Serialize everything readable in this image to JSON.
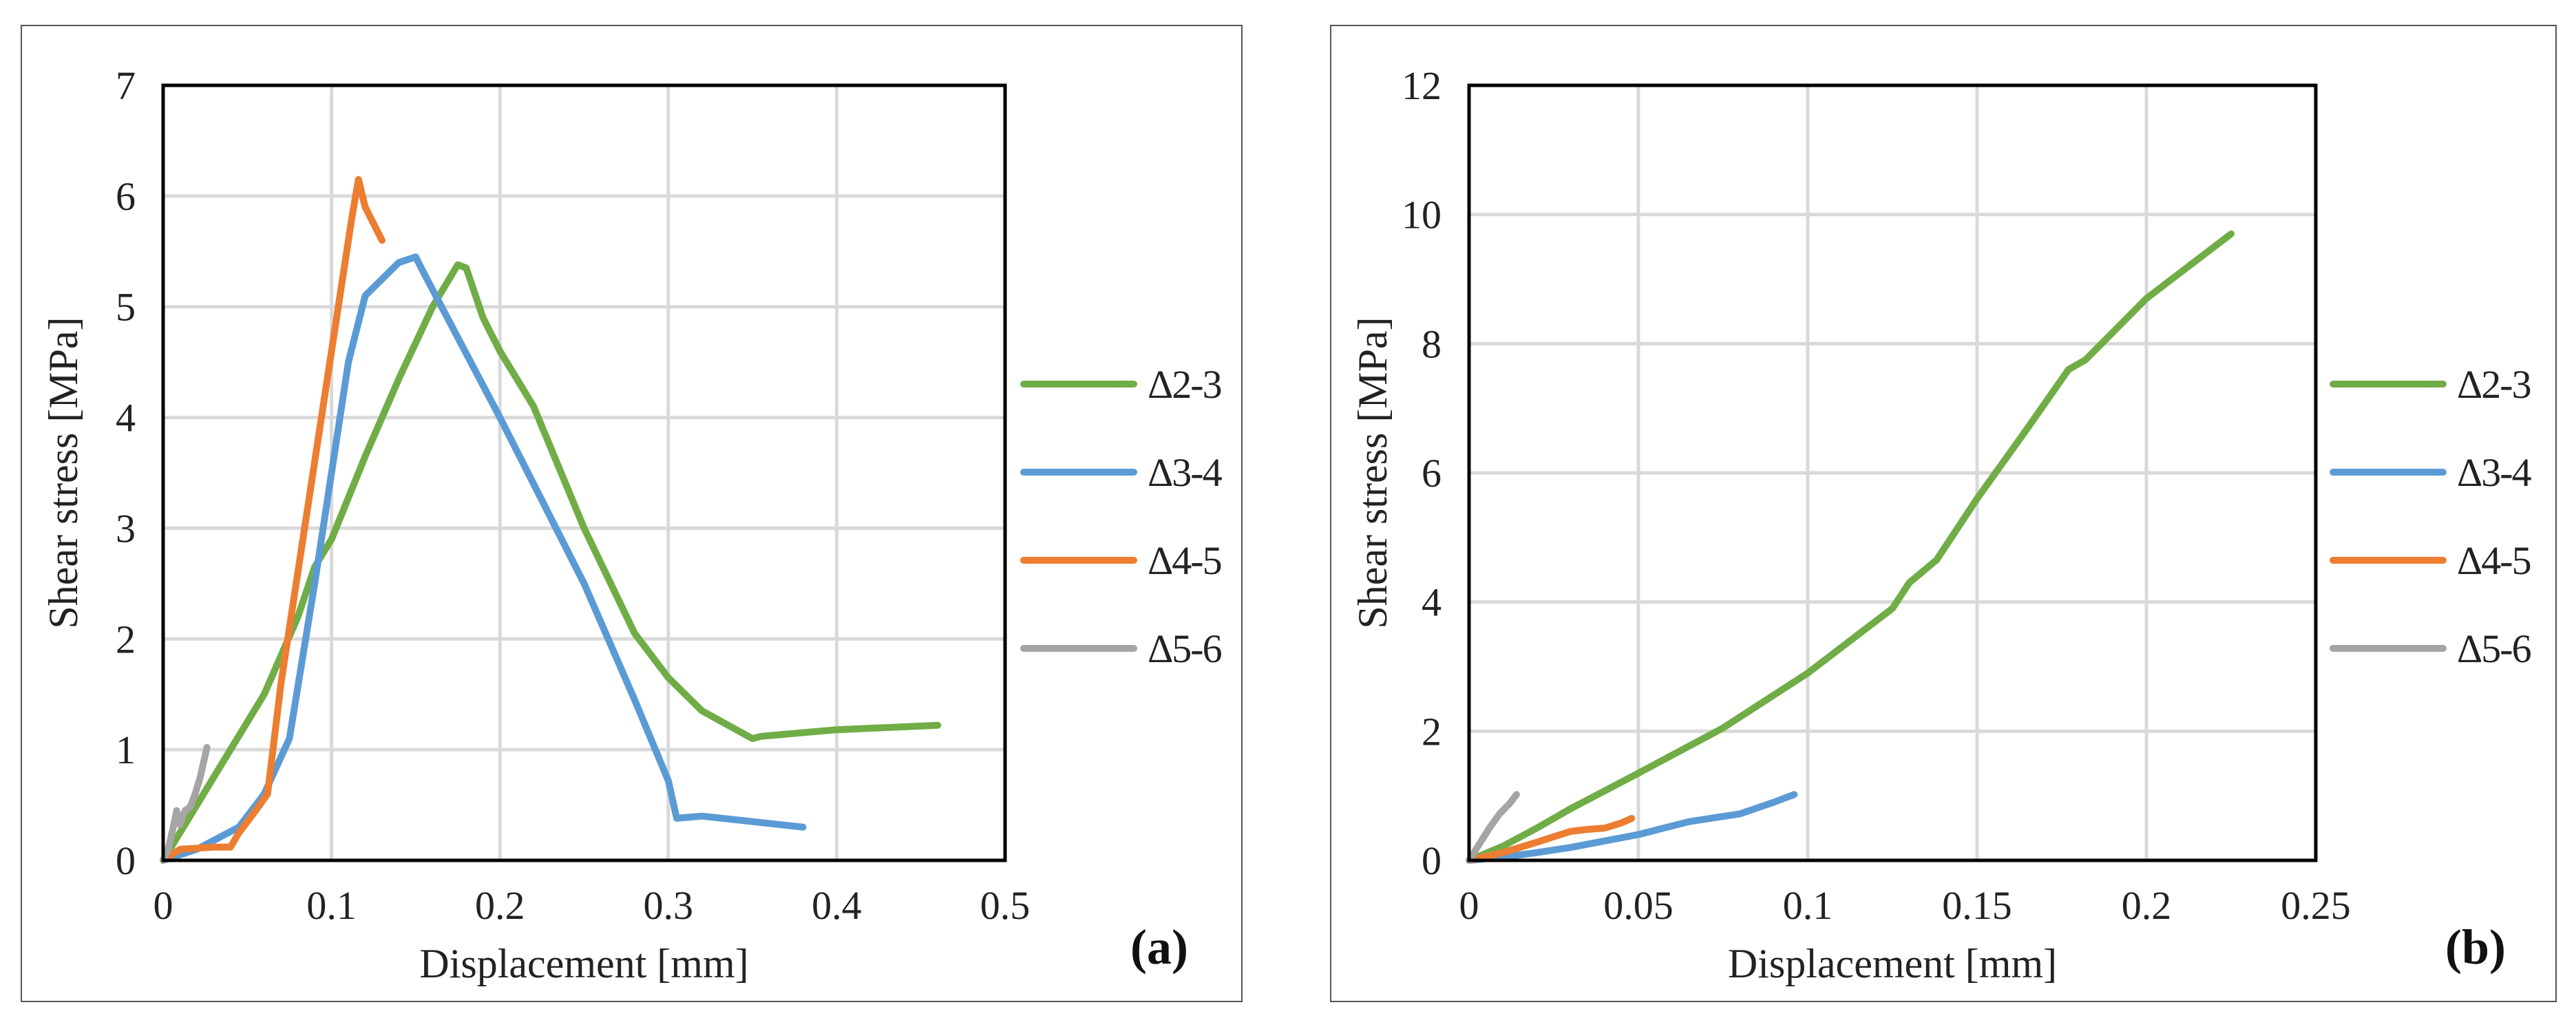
{
  "figure_id": "shear-stress-displacement",
  "chart_data": [
    {
      "type": "line",
      "panel_label": "(a)",
      "xlabel": "Displacement [mm]",
      "ylabel": "Shear stress [MPa]",
      "xlim": [
        0,
        0.5
      ],
      "ylim": [
        0,
        7
      ],
      "xticks": [
        0,
        0.1,
        0.2,
        0.3,
        0.4,
        0.5
      ],
      "yticks": [
        0,
        1,
        2,
        3,
        4,
        5,
        6,
        7
      ],
      "xtick_labels": [
        "0",
        "0.1",
        "0.2",
        "0.3",
        "0.4",
        "0.5"
      ],
      "ytick_labels": [
        "0",
        "1",
        "2",
        "3",
        "4",
        "5",
        "6",
        "7"
      ],
      "grid": true,
      "legend_position": "right",
      "series": [
        {
          "name": "Δ2-3",
          "color": "#70AD47",
          "x": [
            0,
            0.02,
            0.04,
            0.06,
            0.08,
            0.09,
            0.1,
            0.12,
            0.14,
            0.16,
            0.175,
            0.18,
            0.19,
            0.2,
            0.22,
            0.25,
            0.28,
            0.3,
            0.32,
            0.35,
            0.355,
            0.4,
            0.46
          ],
          "y": [
            0,
            0.5,
            1.0,
            1.5,
            2.2,
            2.65,
            2.9,
            3.65,
            4.35,
            5.0,
            5.38,
            5.35,
            4.9,
            4.6,
            4.1,
            3.0,
            2.05,
            1.65,
            1.35,
            1.1,
            1.12,
            1.18,
            1.22
          ]
        },
        {
          "name": "Δ3-4",
          "color": "#5B9BD5",
          "x": [
            0,
            0.02,
            0.045,
            0.06,
            0.075,
            0.09,
            0.1,
            0.11,
            0.12,
            0.14,
            0.15,
            0.155,
            0.2,
            0.25,
            0.28,
            0.3,
            0.305,
            0.32,
            0.38
          ],
          "y": [
            0,
            0.1,
            0.3,
            0.6,
            1.1,
            2.5,
            3.5,
            4.5,
            5.1,
            5.4,
            5.45,
            5.3,
            4.0,
            2.5,
            1.45,
            0.72,
            0.38,
            0.4,
            0.3
          ]
        },
        {
          "name": "Δ4-5",
          "color": "#ED7D31",
          "x": [
            0,
            0.01,
            0.03,
            0.04,
            0.045,
            0.055,
            0.062,
            0.07,
            0.09,
            0.1,
            0.112,
            0.116,
            0.12,
            0.13
          ],
          "y": [
            0,
            0.1,
            0.12,
            0.12,
            0.25,
            0.45,
            0.6,
            1.6,
            3.6,
            4.6,
            5.8,
            6.15,
            5.9,
            5.6
          ]
        },
        {
          "name": "Δ5-6",
          "color": "#A5A5A5",
          "x": [
            0,
            0.003,
            0.006,
            0.008,
            0.01,
            0.013,
            0.016,
            0.019,
            0.022,
            0.026
          ],
          "y": [
            0,
            0.1,
            0.3,
            0.45,
            0.32,
            0.45,
            0.48,
            0.6,
            0.75,
            1.02
          ]
        }
      ]
    },
    {
      "type": "line",
      "panel_label": "(b)",
      "xlabel": "Displacement [mm]",
      "ylabel": "Shear stress [MPa]",
      "xlim": [
        0,
        0.25
      ],
      "ylim": [
        0,
        12
      ],
      "xticks": [
        0,
        0.05,
        0.1,
        0.15,
        0.2,
        0.25
      ],
      "yticks": [
        0,
        2,
        4,
        6,
        8,
        10,
        12
      ],
      "xtick_labels": [
        "0",
        "0.05",
        "0.1",
        "0.15",
        "0.2",
        "0.25"
      ],
      "ytick_labels": [
        "0",
        "2",
        "4",
        "6",
        "8",
        "10",
        "12"
      ],
      "grid": true,
      "legend_position": "right",
      "series": [
        {
          "name": "Δ2-3",
          "color": "#70AD47",
          "x": [
            0,
            0.01,
            0.02,
            0.03,
            0.05,
            0.075,
            0.1,
            0.125,
            0.13,
            0.138,
            0.15,
            0.165,
            0.177,
            0.182,
            0.2,
            0.225
          ],
          "y": [
            0,
            0.22,
            0.5,
            0.8,
            1.35,
            2.05,
            2.9,
            3.9,
            4.3,
            4.65,
            5.6,
            6.7,
            7.6,
            7.75,
            8.7,
            9.7
          ]
        },
        {
          "name": "Δ3-4",
          "color": "#5B9BD5",
          "x": [
            0,
            0.01,
            0.02,
            0.03,
            0.04,
            0.05,
            0.065,
            0.08,
            0.09,
            0.096
          ],
          "y": [
            0,
            0.05,
            0.12,
            0.2,
            0.3,
            0.4,
            0.6,
            0.72,
            0.9,
            1.02
          ]
        },
        {
          "name": "Δ4-5",
          "color": "#ED7D31",
          "x": [
            0,
            0.01,
            0.02,
            0.03,
            0.035,
            0.04,
            0.045,
            0.048
          ],
          "y": [
            0,
            0.12,
            0.28,
            0.45,
            0.48,
            0.5,
            0.58,
            0.65
          ]
        },
        {
          "name": "Δ5-6",
          "color": "#A5A5A5",
          "x": [
            0,
            0.003,
            0.006,
            0.009,
            0.012,
            0.014
          ],
          "y": [
            0,
            0.25,
            0.5,
            0.72,
            0.88,
            1.02
          ]
        }
      ]
    }
  ]
}
